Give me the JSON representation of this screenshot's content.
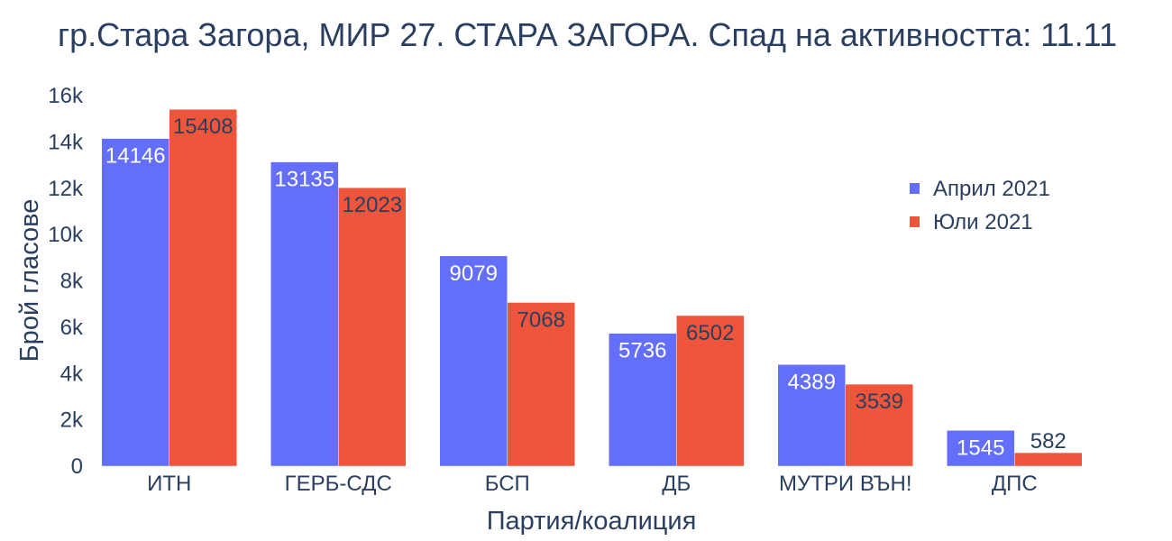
{
  "chart_data": {
    "type": "bar",
    "title": "гр.Стара Загора, МИР 27. СТАРА ЗАГОРА. Спад на активността: 11.11",
    "xlabel": "Партия/коалиция",
    "ylabel": "Брой гласове",
    "categories": [
      "ИТН",
      "ГЕРБ-СДС",
      "БСП",
      "ДБ",
      "МУТРИ ВЪН!",
      "ДПС"
    ],
    "ylim": [
      0,
      16000
    ],
    "yticks": [
      0,
      2000,
      4000,
      6000,
      8000,
      10000,
      12000,
      14000,
      16000
    ],
    "ytick_labels": [
      "0",
      "2k",
      "4k",
      "6k",
      "8k",
      "10k",
      "12k",
      "14k",
      "16k"
    ],
    "grid": false,
    "legend_position": "top-right",
    "series": [
      {
        "name": "Април 2021",
        "color": "#636efa",
        "label_color": "#ffffff",
        "values": [
          14146,
          13135,
          9079,
          5736,
          4389,
          1545
        ],
        "value_labels": [
          "14146",
          "13135",
          "9079",
          "5736",
          "4389",
          "1545"
        ]
      },
      {
        "name": "Юли 2021",
        "color": "#ef553b",
        "label_color": "#2a3f5f",
        "values": [
          15408,
          12023,
          7068,
          6502,
          3539,
          582
        ],
        "value_labels": [
          "15408",
          "12023",
          "7068",
          "6502",
          "3539",
          "582"
        ]
      }
    ]
  }
}
